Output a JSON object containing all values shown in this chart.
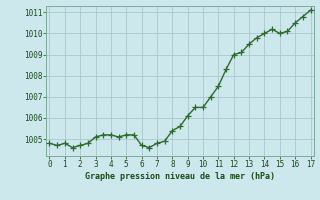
{
  "x": [
    0,
    0.5,
    1,
    1.5,
    2,
    2.5,
    3,
    3.5,
    4,
    4.5,
    5,
    5.5,
    6,
    6.5,
    7,
    7.5,
    8,
    8.5,
    9,
    9.5,
    10,
    10.5,
    11,
    11.5,
    12,
    12.5,
    13,
    13.5,
    14,
    14.5,
    15,
    15.5,
    16,
    16.5,
    17
  ],
  "y": [
    1004.8,
    1004.7,
    1004.8,
    1004.6,
    1004.7,
    1004.8,
    1005.1,
    1005.2,
    1005.2,
    1005.1,
    1005.2,
    1005.2,
    1004.7,
    1004.6,
    1004.8,
    1004.9,
    1005.4,
    1005.6,
    1006.1,
    1006.5,
    1006.5,
    1007.0,
    1007.5,
    1008.3,
    1009.0,
    1009.1,
    1009.5,
    1009.8,
    1010.0,
    1010.2,
    1010.0,
    1010.1,
    1010.5,
    1010.8,
    1011.1
  ],
  "line_color": "#2d6a2d",
  "marker_color": "#2d6a2d",
  "bg_color": "#cce8ec",
  "grid_color": "#aac8cc",
  "xlabel": "Graphe pression niveau de la mer (hPa)",
  "xlabel_color": "#1a4c1a",
  "tick_color": "#1a4c1a",
  "xlim": [
    -0.2,
    17.2
  ],
  "ylim": [
    1004.2,
    1011.3
  ],
  "yticks": [
    1005,
    1006,
    1007,
    1008,
    1009,
    1010,
    1011
  ],
  "xticks": [
    0,
    1,
    2,
    3,
    4,
    5,
    6,
    7,
    8,
    9,
    10,
    11,
    12,
    13,
    14,
    15,
    16,
    17
  ],
  "marker_size": 4,
  "line_width": 1.0
}
